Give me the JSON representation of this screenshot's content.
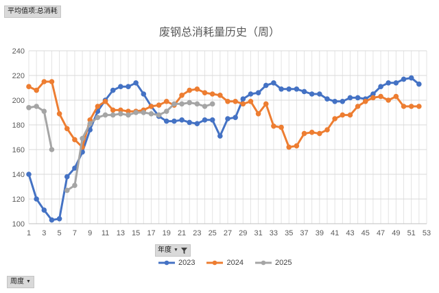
{
  "pivot": {
    "value_field": "平均值项:总消耗",
    "series_filter": "年度",
    "axis_filter": "周度"
  },
  "chart_data": {
    "type": "line",
    "title": "废钢总消耗量历史（周）",
    "xlabel": "",
    "ylabel": "",
    "x_ticks": [
      1,
      3,
      5,
      7,
      9,
      11,
      13,
      15,
      17,
      19,
      21,
      23,
      25,
      27,
      29,
      31,
      33,
      35,
      37,
      39,
      41,
      43,
      45,
      47,
      49,
      51,
      53
    ],
    "xlim": [
      1,
      53
    ],
    "ylim": [
      100,
      240
    ],
    "y_ticks": [
      100,
      120,
      140,
      160,
      180,
      200,
      220,
      240
    ],
    "grid": true,
    "legend_position": "bottom",
    "series": [
      {
        "name": "2023",
        "color": "#4472c4",
        "points": [
          [
            1,
            140
          ],
          [
            2,
            120
          ],
          [
            3,
            111
          ],
          [
            4,
            103
          ],
          [
            5,
            104
          ],
          [
            6,
            138
          ],
          [
            7,
            145
          ],
          [
            8,
            158
          ],
          [
            9,
            176
          ],
          [
            10,
            191
          ],
          [
            11,
            200
          ],
          [
            12,
            208
          ],
          [
            13,
            211
          ],
          [
            14,
            211
          ],
          [
            15,
            214
          ],
          [
            16,
            205
          ],
          [
            17,
            195
          ],
          [
            18,
            187
          ],
          [
            19,
            183
          ],
          [
            20,
            183
          ],
          [
            21,
            184
          ],
          [
            22,
            182
          ],
          [
            23,
            181
          ],
          [
            24,
            184
          ],
          [
            25,
            184
          ],
          [
            26,
            171
          ],
          [
            27,
            185
          ],
          [
            28,
            186
          ],
          [
            29,
            201
          ],
          [
            30,
            205
          ],
          [
            31,
            206
          ],
          [
            32,
            212
          ],
          [
            33,
            214
          ],
          [
            34,
            209
          ],
          [
            35,
            209
          ],
          [
            36,
            209
          ],
          [
            37,
            207
          ],
          [
            38,
            205
          ],
          [
            39,
            205
          ],
          [
            40,
            201
          ],
          [
            41,
            199
          ],
          [
            42,
            199
          ],
          [
            43,
            202
          ],
          [
            44,
            202
          ],
          [
            45,
            201
          ],
          [
            46,
            205
          ],
          [
            47,
            211
          ],
          [
            48,
            214
          ],
          [
            49,
            214
          ],
          [
            50,
            217
          ],
          [
            51,
            218
          ],
          [
            52,
            213
          ]
        ]
      },
      {
        "name": "2024",
        "color": "#ed7d31",
        "points": [
          [
            1,
            211
          ],
          [
            2,
            208
          ],
          [
            3,
            215
          ],
          [
            4,
            215
          ],
          [
            5,
            189
          ],
          [
            6,
            177
          ],
          [
            7,
            168
          ],
          [
            8,
            162
          ],
          [
            9,
            184
          ],
          [
            10,
            195
          ],
          [
            11,
            199
          ],
          [
            12,
            192
          ],
          [
            13,
            192
          ],
          [
            14,
            191
          ],
          [
            15,
            191
          ],
          [
            16,
            192
          ],
          [
            17,
            195
          ],
          [
            18,
            196
          ],
          [
            19,
            199
          ],
          [
            20,
            196
          ],
          [
            21,
            204
          ],
          [
            22,
            208
          ],
          [
            23,
            209
          ],
          [
            24,
            206
          ],
          [
            25,
            205
          ],
          [
            26,
            204
          ],
          [
            27,
            199
          ],
          [
            28,
            199
          ],
          [
            29,
            197
          ],
          [
            30,
            199
          ],
          [
            31,
            189
          ],
          [
            32,
            197
          ],
          [
            33,
            179
          ],
          [
            34,
            178
          ],
          [
            35,
            162
          ],
          [
            36,
            163
          ],
          [
            37,
            173
          ],
          [
            38,
            174
          ],
          [
            39,
            173
          ],
          [
            40,
            176
          ],
          [
            41,
            185
          ],
          [
            42,
            188
          ],
          [
            43,
            188
          ],
          [
            44,
            195
          ],
          [
            45,
            199
          ],
          [
            46,
            202
          ],
          [
            47,
            203
          ],
          [
            48,
            200
          ],
          [
            49,
            203
          ],
          [
            50,
            195
          ],
          [
            51,
            195
          ],
          [
            52,
            195
          ]
        ]
      },
      {
        "name": "2025",
        "color": "#a5a5a5",
        "points": [
          [
            1,
            194
          ],
          [
            2,
            195
          ],
          [
            3,
            191
          ],
          [
            4,
            160
          ],
          [
            5,
            null
          ],
          [
            6,
            127
          ],
          [
            7,
            131
          ],
          [
            8,
            169
          ],
          [
            9,
            181
          ],
          [
            10,
            186
          ],
          [
            11,
            188
          ],
          [
            12,
            188
          ],
          [
            13,
            189
          ],
          [
            14,
            188
          ],
          [
            15,
            190
          ],
          [
            16,
            190
          ],
          [
            17,
            189
          ],
          [
            18,
            188
          ],
          [
            19,
            191
          ],
          [
            20,
            197
          ],
          [
            21,
            197
          ],
          [
            22,
            198
          ],
          [
            23,
            197
          ],
          [
            24,
            195
          ],
          [
            25,
            197
          ]
        ]
      }
    ]
  }
}
